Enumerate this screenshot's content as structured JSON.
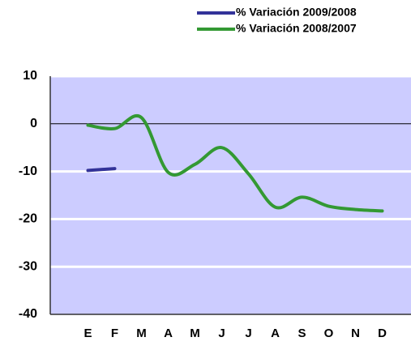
{
  "chart_data": {
    "type": "line",
    "categories": [
      "E",
      "F",
      "M",
      "A",
      "M",
      "J",
      "J",
      "A",
      "S",
      "O",
      "N",
      "D"
    ],
    "series": [
      {
        "name": "% Variación 2009/2008",
        "color": "#333399",
        "values": [
          -9.8,
          -9.4,
          null,
          null,
          null,
          null,
          null,
          null,
          null,
          null,
          null,
          null
        ]
      },
      {
        "name": "% Variación 2008/2007",
        "color": "#339933",
        "values": [
          -0.3,
          -1.0,
          1.3,
          -10.2,
          -8.5,
          -5.0,
          -10.5,
          -17.5,
          -15.4,
          -17.3,
          -18.0,
          -18.3
        ]
      }
    ],
    "ylim": [
      -40,
      10
    ],
    "yticks": [
      -40,
      -30,
      -20,
      -10,
      0,
      10
    ],
    "grid": true,
    "legend": "top-right"
  }
}
